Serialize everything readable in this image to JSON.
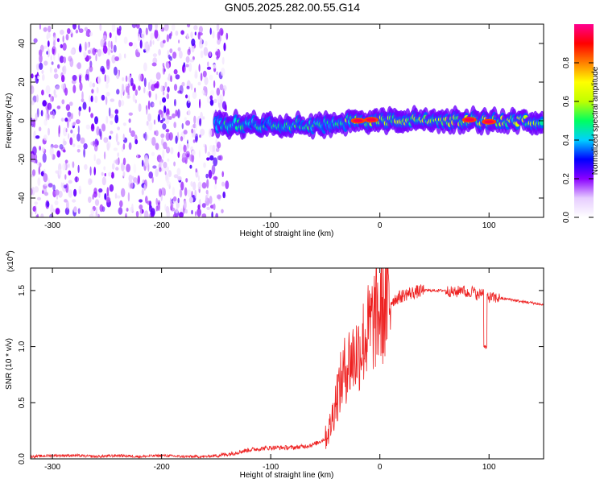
{
  "title": "GN05.2025.282.00.55.G14",
  "chart_data": [
    {
      "type": "heatmap",
      "xlabel": "Height of straight line (km)",
      "ylabel": "Frequency (Hz)",
      "xlim": [
        -320,
        150
      ],
      "ylim": [
        -50,
        50
      ],
      "x_ticks": [
        -300,
        -200,
        -100,
        0,
        100
      ],
      "y_ticks": [
        -40,
        -20,
        0,
        20,
        40
      ],
      "colorbar": {
        "label": "Normalized spectral amplitude",
        "range": [
          0,
          1
        ],
        "ticks": [
          "0.0",
          "0.2",
          "0.4",
          "0.6",
          "0.8"
        ],
        "colors": [
          "#ffffff",
          "#e6ccff",
          "#8a00ff",
          "#0000ff",
          "#00d0ff",
          "#00ff60",
          "#c0ff00",
          "#ffff00",
          "#ff8000",
          "#ff0000",
          "#ff0090"
        ]
      },
      "features": [
        {
          "kind": "noise",
          "x_range": [
            -320,
            -140
          ],
          "y_range": [
            -50,
            50
          ],
          "amplitude": 0.15
        },
        {
          "kind": "band",
          "x_range": [
            -150,
            -30
          ],
          "center_freq": -2,
          "amplitude": 0.45
        },
        {
          "kind": "band",
          "x_range": [
            -30,
            150
          ],
          "center_freq": 0,
          "amplitude": 0.6
        },
        {
          "kind": "peak",
          "x": -20,
          "freq": 0,
          "amplitude": 0.95
        },
        {
          "kind": "peak",
          "x": -8,
          "freq": 0.5,
          "amplitude": 0.95
        },
        {
          "kind": "peak",
          "x": 82,
          "freq": 0.5,
          "amplitude": 0.95
        },
        {
          "kind": "peak",
          "x": 100,
          "freq": -0.5,
          "amplitude": 0.95
        }
      ]
    },
    {
      "type": "line",
      "xlabel": "Height of straight line (km)",
      "ylabel": "SNR (10 * v/v)",
      "multiplier": "(x10",
      "multiplier_exp": "4",
      "xlim": [
        -320,
        150
      ],
      "ylim": [
        0,
        1.7
      ],
      "x_ticks": [
        -300,
        -200,
        -100,
        0,
        100
      ],
      "y_ticks": [
        "0.0",
        "0.5",
        "1.0",
        "1.5"
      ],
      "color": "#ee2222",
      "series": [
        {
          "x": [
            -320,
            -300,
            -280,
            -260,
            -240,
            -220,
            -200,
            -180,
            -160,
            -150,
            -140,
            -130,
            -120,
            -110,
            -100,
            -90,
            -80,
            -70,
            -60,
            -50,
            -45,
            -40,
            -35,
            -30,
            -25,
            -20,
            -15,
            -10,
            -5,
            0,
            5,
            10,
            15,
            20,
            25,
            30,
            35,
            40,
            50,
            60,
            70,
            75,
            80,
            85,
            90,
            95,
            100,
            110,
            120,
            130,
            140,
            150
          ],
          "y": [
            0.02,
            0.03,
            0.03,
            0.02,
            0.03,
            0.02,
            0.03,
            0.02,
            0.02,
            0.03,
            0.04,
            0.06,
            0.08,
            0.09,
            0.1,
            0.1,
            0.1,
            0.11,
            0.13,
            0.18,
            0.3,
            0.55,
            0.7,
            0.85,
            0.9,
            0.95,
            1.05,
            1.15,
            1.25,
            1.3,
            1.35,
            1.4,
            1.43,
            1.45,
            1.47,
            1.48,
            1.49,
            1.5,
            1.5,
            1.5,
            1.48,
            1.52,
            1.47,
            1.5,
            1.45,
            1.5,
            1.44,
            1.43,
            1.42,
            1.4,
            1.39,
            1.37
          ]
        }
      ]
    }
  ]
}
